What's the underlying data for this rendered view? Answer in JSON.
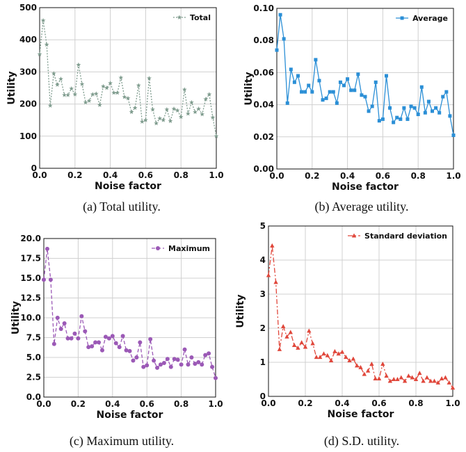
{
  "chart_data": [
    {
      "type": "line",
      "caption": "(a) Total utility.",
      "xlabel": "Noise factor",
      "ylabel": "Utility",
      "xlim": [
        0,
        1
      ],
      "ylim": [
        0,
        500
      ],
      "xticks": [
        "0.0",
        "0.2",
        "0.4",
        "0.6",
        "0.8",
        "1.0"
      ],
      "yticks": [
        "0",
        "100",
        "200",
        "300",
        "400",
        "500"
      ],
      "legend": "top-right",
      "grid": true,
      "series": [
        {
          "name": "Total",
          "color": "#7f9c8e",
          "marker": "star",
          "dash": "2,2",
          "x": [
            0.0,
            0.02,
            0.04,
            0.06,
            0.08,
            0.1,
            0.12,
            0.14,
            0.16,
            0.18,
            0.2,
            0.22,
            0.24,
            0.26,
            0.28,
            0.3,
            0.32,
            0.34,
            0.36,
            0.38,
            0.4,
            0.42,
            0.44,
            0.46,
            0.48,
            0.5,
            0.52,
            0.54,
            0.56,
            0.58,
            0.6,
            0.62,
            0.64,
            0.66,
            0.68,
            0.7,
            0.72,
            0.74,
            0.76,
            0.78,
            0.8,
            0.82,
            0.84,
            0.86,
            0.88,
            0.9,
            0.92,
            0.94,
            0.96,
            0.98,
            1.0
          ],
          "y": [
            355,
            460,
            385,
            195,
            295,
            260,
            278,
            228,
            228,
            248,
            230,
            322,
            262,
            205,
            210,
            230,
            232,
            197,
            255,
            250,
            265,
            235,
            235,
            282,
            222,
            218,
            175,
            188,
            258,
            145,
            150,
            280,
            183,
            140,
            155,
            150,
            183,
            147,
            185,
            180,
            160,
            245,
            170,
            205,
            175,
            185,
            168,
            215,
            230,
            158,
            100
          ]
        }
      ]
    },
    {
      "type": "line",
      "caption": "(b) Average utility.",
      "xlabel": "Noise factor",
      "ylabel": "Utility",
      "xlim": [
        0,
        1
      ],
      "ylim": [
        0,
        0.1
      ],
      "xticks": [
        "0.0",
        "0.2",
        "0.4",
        "0.6",
        "0.8",
        "1.0"
      ],
      "yticks": [
        "0.00",
        "0.02",
        "0.04",
        "0.06",
        "0.08",
        "0.10"
      ],
      "legend": "top-right",
      "grid": true,
      "series": [
        {
          "name": "Average",
          "color": "#2b8fd6",
          "marker": "square",
          "dash": "",
          "x": [
            0.0,
            0.02,
            0.04,
            0.06,
            0.08,
            0.1,
            0.12,
            0.14,
            0.16,
            0.18,
            0.2,
            0.22,
            0.24,
            0.26,
            0.28,
            0.3,
            0.32,
            0.34,
            0.36,
            0.38,
            0.4,
            0.42,
            0.44,
            0.46,
            0.48,
            0.5,
            0.52,
            0.54,
            0.56,
            0.58,
            0.6,
            0.62,
            0.64,
            0.66,
            0.68,
            0.7,
            0.72,
            0.74,
            0.76,
            0.78,
            0.8,
            0.82,
            0.84,
            0.86,
            0.88,
            0.9,
            0.92,
            0.94,
            0.96,
            0.98,
            1.0
          ],
          "y": [
            0.074,
            0.096,
            0.081,
            0.041,
            0.062,
            0.054,
            0.058,
            0.048,
            0.048,
            0.052,
            0.048,
            0.068,
            0.055,
            0.043,
            0.044,
            0.048,
            0.048,
            0.041,
            0.054,
            0.052,
            0.056,
            0.049,
            0.049,
            0.059,
            0.046,
            0.045,
            0.036,
            0.039,
            0.054,
            0.03,
            0.031,
            0.058,
            0.038,
            0.029,
            0.032,
            0.031,
            0.038,
            0.031,
            0.039,
            0.038,
            0.034,
            0.051,
            0.035,
            0.042,
            0.036,
            0.038,
            0.035,
            0.045,
            0.048,
            0.033,
            0.021
          ]
        }
      ]
    },
    {
      "type": "line",
      "caption": "(c) Maximum utility.",
      "xlabel": "Noise factor",
      "ylabel": "Utility",
      "xlim": [
        0,
        1
      ],
      "ylim": [
        0,
        20
      ],
      "xticks": [
        "0.0",
        "0.2",
        "0.4",
        "0.6",
        "0.8",
        "1.0"
      ],
      "yticks": [
        "0.0",
        "2.5",
        "5.0",
        "7.5",
        "10.0",
        "12.5",
        "15.0",
        "17.5",
        "20.0"
      ],
      "legend": "top-right",
      "grid": true,
      "series": [
        {
          "name": "Maximum",
          "color": "#9b59b6",
          "marker": "circle",
          "dash": "5,3",
          "x": [
            0.0,
            0.02,
            0.04,
            0.06,
            0.08,
            0.1,
            0.12,
            0.14,
            0.16,
            0.18,
            0.2,
            0.22,
            0.24,
            0.26,
            0.28,
            0.3,
            0.32,
            0.34,
            0.36,
            0.38,
            0.4,
            0.42,
            0.44,
            0.46,
            0.48,
            0.5,
            0.52,
            0.54,
            0.56,
            0.58,
            0.6,
            0.62,
            0.64,
            0.66,
            0.68,
            0.7,
            0.72,
            0.74,
            0.76,
            0.78,
            0.8,
            0.82,
            0.84,
            0.86,
            0.88,
            0.9,
            0.92,
            0.94,
            0.96,
            0.98,
            1.0
          ],
          "y": [
            14.8,
            18.7,
            14.8,
            6.7,
            10.0,
            8.6,
            9.3,
            7.4,
            7.4,
            8.0,
            7.4,
            10.2,
            8.3,
            6.3,
            6.4,
            6.9,
            6.9,
            5.9,
            7.6,
            7.4,
            7.7,
            6.8,
            6.3,
            7.7,
            5.9,
            5.8,
            4.6,
            5.0,
            6.9,
            3.8,
            4.0,
            7.3,
            4.6,
            3.7,
            4.1,
            4.3,
            4.8,
            3.8,
            4.8,
            4.7,
            4.1,
            6.0,
            4.1,
            5.0,
            4.2,
            4.4,
            4.1,
            5.3,
            5.5,
            3.8,
            2.4
          ]
        }
      ]
    },
    {
      "type": "line",
      "caption": "(d) S.D. utility.",
      "xlabel": "Noise factor",
      "ylabel": "Utility",
      "xlim": [
        0,
        1
      ],
      "ylim": [
        0,
        5
      ],
      "xticks": [
        "0.0",
        "0.2",
        "0.4",
        "0.6",
        "0.8",
        "1.0"
      ],
      "yticks": [
        "0",
        "1",
        "2",
        "3",
        "4",
        "5"
      ],
      "legend": "top-right",
      "grid": true,
      "series": [
        {
          "name": "Standard deviation",
          "color": "#e0473b",
          "marker": "triangle",
          "dash": "7,3,2,3",
          "x": [
            0.0,
            0.02,
            0.04,
            0.06,
            0.08,
            0.1,
            0.12,
            0.14,
            0.16,
            0.18,
            0.2,
            0.22,
            0.24,
            0.26,
            0.28,
            0.3,
            0.32,
            0.34,
            0.36,
            0.38,
            0.4,
            0.42,
            0.44,
            0.46,
            0.48,
            0.5,
            0.52,
            0.54,
            0.56,
            0.58,
            0.6,
            0.62,
            0.64,
            0.66,
            0.68,
            0.7,
            0.72,
            0.74,
            0.76,
            0.78,
            0.8,
            0.82,
            0.84,
            0.86,
            0.88,
            0.9,
            0.92,
            0.94,
            0.96,
            0.98,
            1.0
          ],
          "y": [
            3.55,
            4.42,
            3.35,
            1.38,
            2.05,
            1.75,
            1.88,
            1.5,
            1.42,
            1.58,
            1.45,
            1.92,
            1.55,
            1.15,
            1.15,
            1.25,
            1.2,
            1.05,
            1.32,
            1.25,
            1.3,
            1.15,
            1.05,
            1.1,
            0.9,
            0.85,
            0.65,
            0.75,
            0.95,
            0.52,
            0.52,
            0.95,
            0.6,
            0.45,
            0.5,
            0.5,
            0.55,
            0.45,
            0.6,
            0.55,
            0.5,
            0.68,
            0.45,
            0.55,
            0.45,
            0.45,
            0.4,
            0.52,
            0.55,
            0.4,
            0.25
          ]
        }
      ]
    }
  ]
}
